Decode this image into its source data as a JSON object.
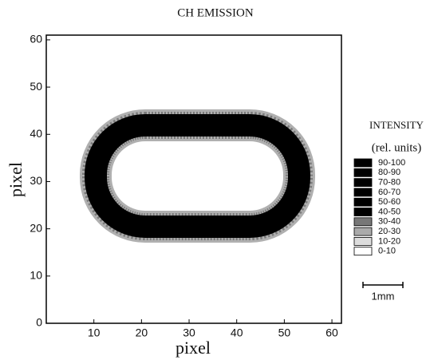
{
  "chart_data": {
    "type": "image",
    "title": "CH EMISSION",
    "x_label": "pixel",
    "y_label": "pixel",
    "xlim": [
      0,
      62
    ],
    "ylim": [
      0,
      61
    ],
    "xticks": [
      10,
      20,
      30,
      40,
      50,
      60
    ],
    "yticks": [
      0,
      10,
      20,
      30,
      40,
      50,
      60
    ],
    "legend_title": "INTENSITY",
    "legend_subtitle": "(rel. units)",
    "levels": [
      {
        "label": "90-100",
        "color": "#000000"
      },
      {
        "label": "80-90",
        "color": "#000000"
      },
      {
        "label": "70-80",
        "color": "#000000"
      },
      {
        "label": "60-70",
        "color": "#000000"
      },
      {
        "label": "50-60",
        "color": "#000000"
      },
      {
        "label": "40-50",
        "color": "#000000"
      },
      {
        "label": "30-40",
        "color": "#777777"
      },
      {
        "label": "20-30",
        "color": "#aaaaaa"
      },
      {
        "label": "10-20",
        "color": "#dddddd"
      },
      {
        "label": "0-10",
        "color": "#ffffff"
      }
    ],
    "scale_bar": "1mm"
  }
}
